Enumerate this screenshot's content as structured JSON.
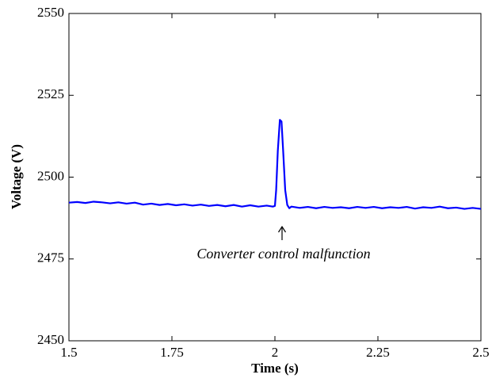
{
  "chart_data": {
    "type": "line",
    "x_label": "Time (s)",
    "y_label": "Voltage (V)",
    "annotation": "Converter control malfunction",
    "xlim": [
      1.5,
      2.5
    ],
    "xticks": [
      1.5,
      1.75,
      2,
      2.25,
      2.5
    ],
    "ylim": [
      2450,
      2550
    ],
    "yticks": [
      2450,
      2475,
      2500,
      2525,
      2550
    ],
    "grid": false,
    "x": [
      1.5,
      1.52,
      1.54,
      1.56,
      1.58,
      1.6,
      1.62,
      1.64,
      1.66,
      1.68,
      1.7,
      1.72,
      1.74,
      1.76,
      1.78,
      1.8,
      1.82,
      1.84,
      1.86,
      1.88,
      1.9,
      1.92,
      1.94,
      1.96,
      1.98,
      1.995,
      2.0,
      2.003,
      2.007,
      2.012,
      2.016,
      2.02,
      2.025,
      2.03,
      2.035,
      2.04,
      2.06,
      2.08,
      2.1,
      2.12,
      2.14,
      2.16,
      2.18,
      2.2,
      2.22,
      2.24,
      2.26,
      2.28,
      2.3,
      2.32,
      2.34,
      2.36,
      2.38,
      2.4,
      2.42,
      2.44,
      2.46,
      2.48,
      2.5
    ],
    "series": [
      {
        "name": "Voltage",
        "color": "#0000ff",
        "values": [
          2492.2,
          2492.4,
          2492.1,
          2492.5,
          2492.3,
          2492.0,
          2492.3,
          2491.9,
          2492.2,
          2491.6,
          2491.9,
          2491.5,
          2491.8,
          2491.4,
          2491.7,
          2491.3,
          2491.6,
          2491.2,
          2491.5,
          2491.1,
          2491.5,
          2491.0,
          2491.4,
          2491.0,
          2491.3,
          2491.0,
          2491.2,
          2496,
          2508,
          2517.5,
          2517,
          2508,
          2496,
          2491.5,
          2490.5,
          2491.0,
          2490.6,
          2490.9,
          2490.5,
          2490.9,
          2490.6,
          2490.8,
          2490.5,
          2490.9,
          2490.6,
          2490.9,
          2490.5,
          2490.8,
          2490.6,
          2490.9,
          2490.4,
          2490.8,
          2490.6,
          2491.0,
          2490.5,
          2490.7,
          2490.3,
          2490.6,
          2490.3
        ]
      }
    ]
  }
}
